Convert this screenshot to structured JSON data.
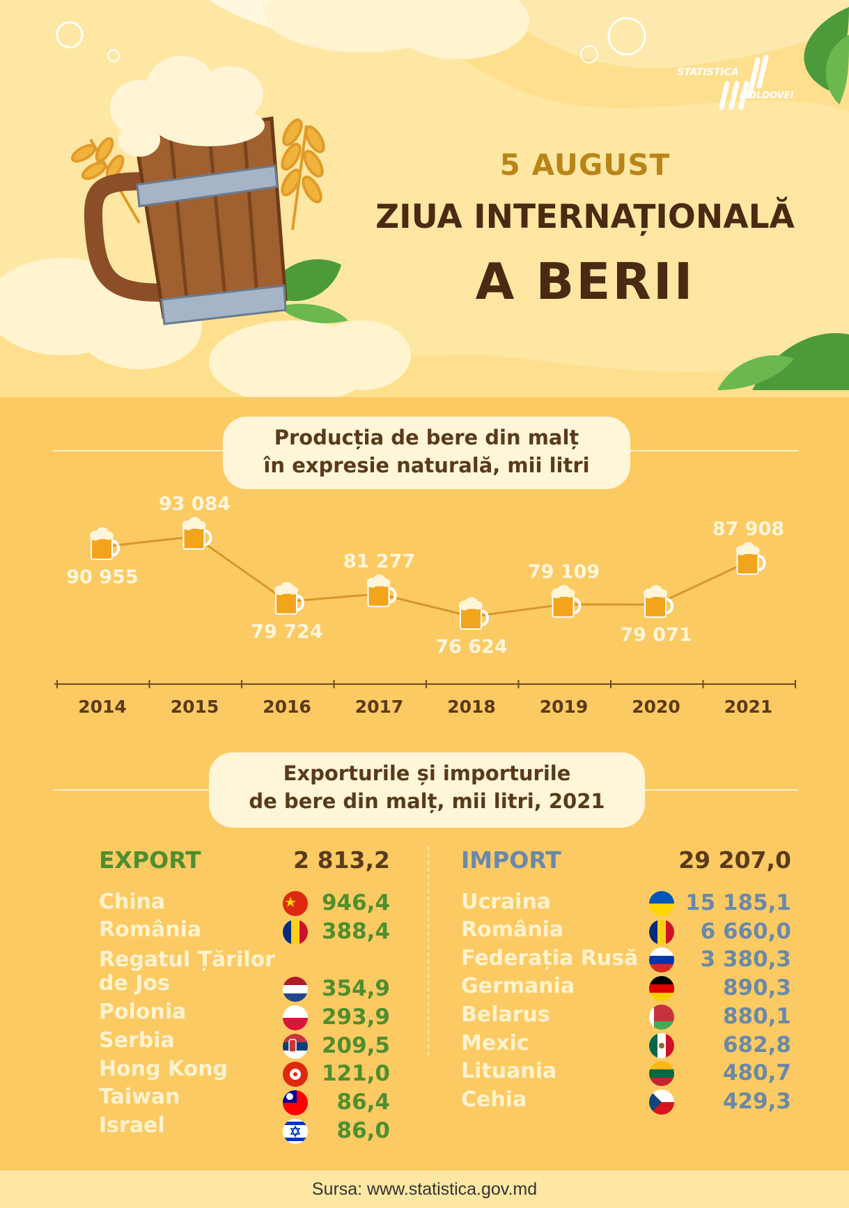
{
  "header": {
    "date": "5 AUGUST",
    "title_line1": "ZIUA INTERNAȚIONALĂ",
    "title_line2": "A BERII",
    "logo_line1": "STATISTICA",
    "logo_line2": "MOLDOVEI"
  },
  "production": {
    "title_line1": "Producția de bere din malț",
    "title_line2": "în expresie naturală, mii litri"
  },
  "chart_data": {
    "type": "line",
    "title": "Producția de bere din malț în expresie naturală, mii litri",
    "x": [
      "2014",
      "2015",
      "2016",
      "2017",
      "2018",
      "2019",
      "2020",
      "2021"
    ],
    "values": [
      90955,
      93084,
      79724,
      81277,
      76624,
      79109,
      79071,
      87908
    ],
    "labels": [
      "90 955",
      "93 084",
      "79 724",
      "81 277",
      "76 624",
      "79 109",
      "79 071",
      "87 908"
    ],
    "label_position": [
      "below",
      "above",
      "below",
      "above",
      "below",
      "above",
      "below",
      "above"
    ],
    "grid": false,
    "marker": "beer-mug"
  },
  "trade": {
    "title_line1": "Exporturile și importurile",
    "title_line2": "de bere din malț, mii litri, 2021",
    "export": {
      "label": "EXPORT",
      "total": "2 813,2",
      "color": "#4f8e2e",
      "rows": [
        {
          "country": "China",
          "value": "946,4",
          "flag": "china-flag-icon"
        },
        {
          "country": "România",
          "value": "388,4",
          "flag": "romania-flag-icon"
        },
        {
          "country": "Regatul Țărilor de Jos",
          "country_line1": "Regatul Țărilor",
          "country_line2": "de Jos",
          "value": "354,9",
          "flag": "netherlands-flag-icon"
        },
        {
          "country": "Polonia",
          "value": "293,9",
          "flag": "poland-flag-icon"
        },
        {
          "country": "Serbia",
          "value": "209,5",
          "flag": "serbia-flag-icon"
        },
        {
          "country": "Hong Kong",
          "value": "121,0",
          "flag": "hong-kong-flag-icon"
        },
        {
          "country": "Taiwan",
          "value": "86,4",
          "flag": "taiwan-flag-icon"
        },
        {
          "country": "Israel",
          "value": "86,0",
          "flag": "israel-flag-icon"
        }
      ]
    },
    "import": {
      "label": "IMPORT",
      "total": "29 207,0",
      "color": "#6a89a8",
      "rows": [
        {
          "country": "Ucraina",
          "value": "15 185,1",
          "flag": "ukraine-flag-icon"
        },
        {
          "country": "România",
          "value": "6 660,0",
          "flag": "romania-flag-icon"
        },
        {
          "country": "Federația Rusă",
          "value": "3 380,3",
          "flag": "russia-flag-icon"
        },
        {
          "country": "Germania",
          "value": "890,3",
          "flag": "germany-flag-icon"
        },
        {
          "country": "Belarus",
          "value": "880,1",
          "flag": "belarus-flag-icon"
        },
        {
          "country": "Mexic",
          "value": "682,8",
          "flag": "mexico-flag-icon"
        },
        {
          "country": "Lituania",
          "value": "480,7",
          "flag": "lithuania-flag-icon"
        },
        {
          "country": "Cehia",
          "value": "429,3",
          "flag": "czechia-flag-icon"
        }
      ]
    }
  },
  "footer": {
    "source": "Sursa: www.statistica.gov.md"
  }
}
